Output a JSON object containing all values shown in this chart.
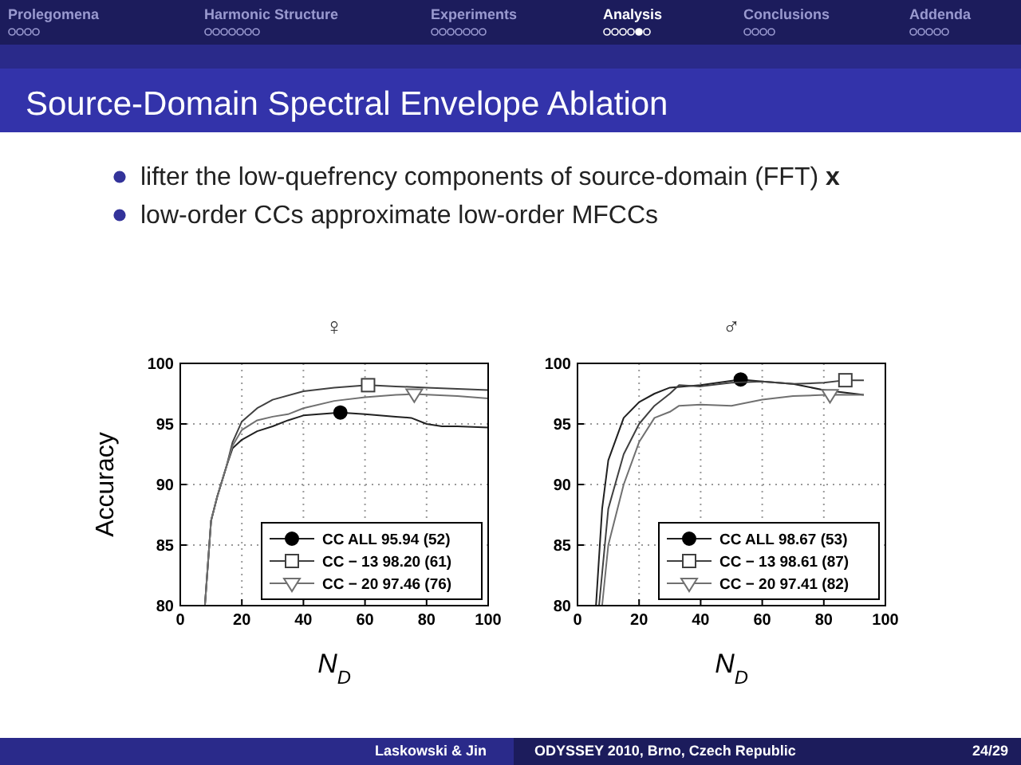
{
  "chart_data": [
    {
      "type": "line",
      "title": "♀",
      "xlabel": "N$_{D}$",
      "ylabel": "Accuracy",
      "xlim": [
        0,
        100
      ],
      "ylim": [
        80,
        100
      ],
      "xticks": [
        0,
        20,
        40,
        60,
        80,
        100
      ],
      "yticks": [
        80,
        85,
        90,
        95,
        100
      ],
      "grid": true,
      "legend": "bottom right",
      "line_style": "solid",
      "annotations": [
        "Prolegomena",
        "Harmonic Structure",
        "Experiments",
        "Analysis",
        "Conclusions",
        "Addenda",
        "Source-Domain Spectral Envelope Ablation",
        "lifter the low-quefrency components of source-domain (FFT) x",
        "low-order CCs approximate low-order MFCCs",
        "Laskowski & Jin",
        "ODYSSEY 2010, Brno, Czech Republic",
        "24/29"
      ],
      "series": [
        {
          "type": "line",
          "name": "CC ALL 95.94 (52)",
          "color": "#202020",
          "x": [
            8,
            10,
            12,
            15,
            17,
            20,
            25,
            30,
            35,
            40,
            45,
            52,
            60,
            70,
            75,
            80,
            85,
            90,
            100
          ],
          "values": [
            80,
            87,
            89,
            91.5,
            93,
            93.7,
            94.4,
            94.8,
            95.3,
            95.7,
            95.8,
            95.94,
            95.8,
            95.6,
            95.5,
            95.0,
            94.8,
            94.8,
            94.7
          ]
        },
        {
          "type": "scatter",
          "marker": "circle",
          "color": "#000000",
          "x": [
            52
          ],
          "values": [
            95.94
          ]
        },
        {
          "type": "line",
          "name": "CC − 13 98.20 (61)",
          "color": "#404040",
          "x": [
            8,
            10,
            12,
            15,
            17,
            20,
            25,
            30,
            40,
            50,
            61,
            70,
            80,
            90,
            100
          ],
          "values": [
            80,
            87,
            89,
            91.5,
            93.5,
            95.2,
            96.3,
            97.0,
            97.7,
            98.0,
            98.2,
            98.1,
            98.0,
            97.9,
            97.8
          ]
        },
        {
          "type": "scatter",
          "marker": "square",
          "color": "#404040",
          "x": [
            61
          ],
          "values": [
            98.2
          ]
        },
        {
          "type": "line",
          "name": "CC − 20 97.46 (76)",
          "color": "#707070",
          "x": [
            8,
            10,
            12,
            15,
            17,
            20,
            25,
            30,
            35,
            40,
            50,
            60,
            70,
            76,
            90,
            100
          ],
          "values": [
            80,
            87,
            89,
            91.5,
            93.2,
            94.5,
            95.3,
            95.6,
            95.8,
            96.3,
            96.9,
            97.2,
            97.4,
            97.46,
            97.3,
            97.1
          ]
        },
        {
          "type": "scatter",
          "marker": "triangle",
          "color": "#707070",
          "x": [
            76
          ],
          "values": [
            97.46
          ]
        }
      ]
    },
    {
      "type": "line",
      "title": "♂",
      "xlabel": "N$_{D}$",
      "xlim": [
        0,
        100
      ],
      "ylim": [
        80,
        100
      ],
      "xticks": [
        0,
        20,
        40,
        60,
        80,
        100
      ],
      "yticks": [
        80,
        85,
        90,
        95,
        100
      ],
      "grid": true,
      "legend": "bottom right",
      "line_style": "solid",
      "series": [
        {
          "type": "line",
          "name": "CC ALL 98.67 (53)",
          "color": "#202020",
          "x": [
            6,
            8,
            10,
            15,
            20,
            25,
            30,
            40,
            53,
            60,
            70,
            80,
            93
          ],
          "values": [
            80,
            88,
            92,
            95.5,
            96.8,
            97.5,
            98.0,
            98.2,
            98.67,
            98.5,
            98.3,
            97.8,
            97.4
          ]
        },
        {
          "type": "scatter",
          "marker": "circle",
          "color": "#000000",
          "x": [
            53
          ],
          "values": [
            98.67
          ]
        },
        {
          "type": "line",
          "name": "CC − 13 98.61 (87)",
          "color": "#404040",
          "x": [
            7,
            10,
            15,
            20,
            25,
            30,
            33,
            40,
            50,
            60,
            70,
            80,
            87,
            93
          ],
          "values": [
            80,
            88,
            92.5,
            95,
            96.5,
            97.5,
            98.2,
            98.1,
            98.4,
            98.5,
            98.3,
            98.4,
            98.61,
            98.6
          ]
        },
        {
          "type": "scatter",
          "marker": "square",
          "color": "#404040",
          "x": [
            87
          ],
          "values": [
            98.61
          ]
        },
        {
          "type": "line",
          "name": "CC − 20 97.41 (82)",
          "color": "#707070",
          "x": [
            8,
            10,
            15,
            20,
            25,
            30,
            33,
            40,
            50,
            60,
            70,
            82,
            93
          ],
          "values": [
            80,
            85,
            90,
            93.5,
            95.5,
            96.0,
            96.5,
            96.6,
            96.5,
            97.0,
            97.3,
            97.41,
            97.4
          ]
        },
        {
          "type": "scatter",
          "marker": "triangle",
          "color": "#707070",
          "x": [
            82
          ],
          "values": [
            97.41
          ]
        }
      ]
    }
  ]
}
